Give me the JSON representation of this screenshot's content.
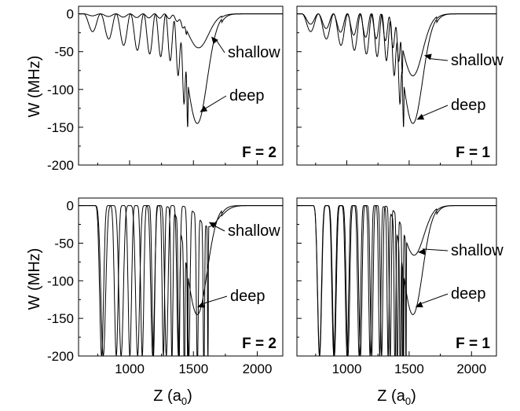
{
  "ylabel": "W (MHz)",
  "xlabel": "Z (a",
  "xlabel_sub": "0",
  "xlabel_close": ")",
  "chart_data": [
    {
      "type": "line",
      "panel": "top-left",
      "f_label": "F = 2",
      "xlim": [
        600,
        2200
      ],
      "ylim": [
        -200,
        10
      ],
      "xticks": [
        "1000",
        "1500",
        "2000"
      ],
      "yticks": [
        "0",
        "-50",
        "-100",
        "-150",
        "-200"
      ],
      "show_x_tick_labels": false,
      "show_y_tick_labels": true,
      "annotations": [
        {
          "text": "shallow",
          "target_x": 1640,
          "target_y": -30
        },
        {
          "text": "deep",
          "target_x": 1550,
          "target_y": -130
        }
      ],
      "series": [
        {
          "id": "shallow",
          "min_x": 1540,
          "min_y": -45,
          "osc_amp": 6,
          "osc_start": 640,
          "osc_end": 1450,
          "osc_count": 10,
          "envelope_at_start": 0.35
        },
        {
          "id": "deep",
          "min_x": 1530,
          "min_y": -145,
          "osc_amp": 60,
          "osc_start": 640,
          "osc_end": 1460,
          "osc_count": 10,
          "envelope_at_start": 0.3
        }
      ]
    },
    {
      "type": "line",
      "panel": "top-right",
      "f_label": "F = 1",
      "xlim": [
        600,
        2200
      ],
      "ylim": [
        -200,
        10
      ],
      "xticks": [
        "1000",
        "1500",
        "2000"
      ],
      "yticks": [
        "0",
        "-50",
        "-100",
        "-150",
        "-200"
      ],
      "show_x_tick_labels": false,
      "show_y_tick_labels": false,
      "annotations": [
        {
          "text": "shallow",
          "target_x": 1620,
          "target_y": -55
        },
        {
          "text": "deep",
          "target_x": 1560,
          "target_y": -140
        }
      ],
      "series": [
        {
          "id": "shallow",
          "min_x": 1530,
          "min_y": -82,
          "osc_amp": 35,
          "osc_start": 640,
          "osc_end": 1450,
          "osc_count": 10,
          "envelope_at_start": 0.3
        },
        {
          "id": "deep",
          "min_x": 1530,
          "min_y": -145,
          "osc_amp": 60,
          "osc_start": 640,
          "osc_end": 1460,
          "osc_count": 10,
          "envelope_at_start": 0.3
        }
      ]
    },
    {
      "type": "line",
      "panel": "bottom-left",
      "f_label": "F = 2",
      "xlim": [
        600,
        2200
      ],
      "ylim": [
        -200,
        10
      ],
      "xticks": [
        "1000",
        "1500",
        "2000"
      ],
      "yticks": [
        "0",
        "-50",
        "-100",
        "-150",
        "-200"
      ],
      "show_x_tick_labels": true,
      "show_y_tick_labels": true,
      "annotations": [
        {
          "text": "shallow",
          "target_x": 1620,
          "target_y": -22
        },
        {
          "text": "deep",
          "target_x": 1530,
          "target_y": -135
        }
      ],
      "series": [
        {
          "id": "shallow",
          "min_x": 1620,
          "min_y": -28,
          "osc_amp": 200,
          "osc_start": 720,
          "osc_end": 1620,
          "osc_count": 10,
          "envelope_at_start": 1.0,
          "steep": true
        },
        {
          "id": "deep",
          "min_x": 1530,
          "min_y": -145,
          "osc_amp": 200,
          "osc_start": 720,
          "osc_end": 1460,
          "osc_count": 10,
          "envelope_at_start": 1.0,
          "steep": true
        }
      ]
    },
    {
      "type": "line",
      "panel": "bottom-right",
      "f_label": "F = 1",
      "xlim": [
        600,
        2200
      ],
      "ylim": [
        -200,
        10
      ],
      "xticks": [
        "1000",
        "1500",
        "2000"
      ],
      "yticks": [
        "0",
        "-50",
        "-100",
        "-150",
        "-200"
      ],
      "show_x_tick_labels": true,
      "show_y_tick_labels": false,
      "annotations": [
        {
          "text": "shallow",
          "target_x": 1570,
          "target_y": -62
        },
        {
          "text": "deep",
          "target_x": 1550,
          "target_y": -135
        }
      ],
      "series": [
        {
          "id": "shallow",
          "min_x": 1540,
          "min_y": -66,
          "osc_amp": 200,
          "osc_start": 720,
          "osc_end": 1480,
          "osc_count": 10,
          "envelope_at_start": 1.0,
          "steep": true
        },
        {
          "id": "deep",
          "min_x": 1530,
          "min_y": -145,
          "osc_amp": 200,
          "osc_start": 720,
          "osc_end": 1460,
          "osc_count": 10,
          "envelope_at_start": 1.0,
          "steep": true
        }
      ]
    }
  ]
}
